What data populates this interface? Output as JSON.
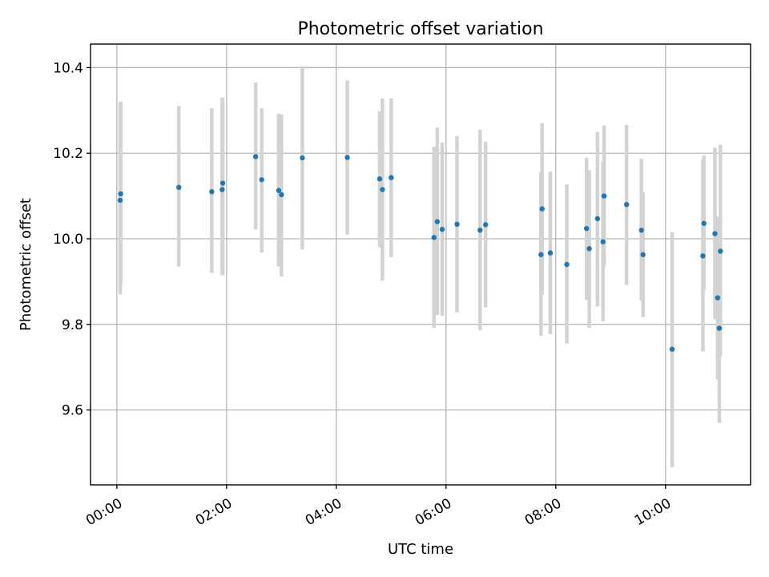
{
  "chart_data": {
    "type": "scatter",
    "title": "Photometric offset variation",
    "xlabel": "UTC time",
    "ylabel": "Photometric offset",
    "x_unit": "hours UTC",
    "xlim": [
      -0.48,
      11.55
    ],
    "ylim": [
      9.425,
      10.455
    ],
    "x_ticks": [
      {
        "value": 0,
        "label": "00:00"
      },
      {
        "value": 2,
        "label": "02:00"
      },
      {
        "value": 4,
        "label": "04:00"
      },
      {
        "value": 6,
        "label": "06:00"
      },
      {
        "value": 8,
        "label": "08:00"
      },
      {
        "value": 10,
        "label": "10:00"
      }
    ],
    "y_ticks": [
      {
        "value": 9.6,
        "label": "9.6"
      },
      {
        "value": 9.8,
        "label": "9.8"
      },
      {
        "value": 10.0,
        "label": "10.0"
      },
      {
        "value": 10.2,
        "label": "10.2"
      },
      {
        "value": 10.4,
        "label": "10.4"
      }
    ],
    "grid": true,
    "marker_color": "#1f77b4",
    "errorbar_color": "#d3d3d3",
    "points": [
      {
        "x": 0.06,
        "y": 10.09,
        "ylo": 9.87,
        "yhi": 10.32
      },
      {
        "x": 0.07,
        "y": 10.105,
        "ylo": 9.89,
        "yhi": 10.32
      },
      {
        "x": 1.13,
        "y": 10.12,
        "ylo": 9.935,
        "yhi": 10.31
      },
      {
        "x": 1.73,
        "y": 10.11,
        "ylo": 9.92,
        "yhi": 10.305
      },
      {
        "x": 1.92,
        "y": 10.115,
        "ylo": 9.915,
        "yhi": 10.33
      },
      {
        "x": 1.93,
        "y": 10.13,
        "ylo": 9.915,
        "yhi": 10.33
      },
      {
        "x": 2.53,
        "y": 10.192,
        "ylo": 10.022,
        "yhi": 10.365
      },
      {
        "x": 2.64,
        "y": 10.138,
        "ylo": 9.968,
        "yhi": 10.305
      },
      {
        "x": 2.95,
        "y": 10.113,
        "ylo": 9.935,
        "yhi": 10.292
      },
      {
        "x": 3.0,
        "y": 10.103,
        "ylo": 9.912,
        "yhi": 10.29
      },
      {
        "x": 3.38,
        "y": 10.189,
        "ylo": 9.975,
        "yhi": 10.403
      },
      {
        "x": 4.2,
        "y": 10.19,
        "ylo": 10.01,
        "yhi": 10.37
      },
      {
        "x": 4.79,
        "y": 10.14,
        "ylo": 9.98,
        "yhi": 10.298
      },
      {
        "x": 4.84,
        "y": 10.115,
        "ylo": 9.902,
        "yhi": 10.328
      },
      {
        "x": 5.0,
        "y": 10.143,
        "ylo": 9.957,
        "yhi": 10.328
      },
      {
        "x": 5.78,
        "y": 10.003,
        "ylo": 9.792,
        "yhi": 10.215
      },
      {
        "x": 5.84,
        "y": 10.04,
        "ylo": 9.822,
        "yhi": 10.26
      },
      {
        "x": 5.93,
        "y": 10.022,
        "ylo": 9.82,
        "yhi": 10.225
      },
      {
        "x": 6.2,
        "y": 10.034,
        "ylo": 9.828,
        "yhi": 10.24
      },
      {
        "x": 6.62,
        "y": 10.02,
        "ylo": 9.787,
        "yhi": 10.255
      },
      {
        "x": 6.72,
        "y": 10.033,
        "ylo": 9.84,
        "yhi": 10.227
      },
      {
        "x": 7.73,
        "y": 9.963,
        "ylo": 9.773,
        "yhi": 10.155
      },
      {
        "x": 7.75,
        "y": 10.07,
        "ylo": 9.87,
        "yhi": 10.27
      },
      {
        "x": 7.9,
        "y": 9.967,
        "ylo": 9.777,
        "yhi": 10.157
      },
      {
        "x": 8.2,
        "y": 9.94,
        "ylo": 9.755,
        "yhi": 10.127
      },
      {
        "x": 8.56,
        "y": 10.024,
        "ylo": 9.857,
        "yhi": 10.189
      },
      {
        "x": 8.61,
        "y": 9.977,
        "ylo": 9.792,
        "yhi": 10.16
      },
      {
        "x": 8.76,
        "y": 10.047,
        "ylo": 9.842,
        "yhi": 10.25
      },
      {
        "x": 8.86,
        "y": 9.993,
        "ylo": 9.807,
        "yhi": 10.18
      },
      {
        "x": 8.88,
        "y": 10.1,
        "ylo": 9.935,
        "yhi": 10.265
      },
      {
        "x": 9.29,
        "y": 10.08,
        "ylo": 9.892,
        "yhi": 10.266
      },
      {
        "x": 9.56,
        "y": 10.02,
        "ylo": 9.856,
        "yhi": 10.187
      },
      {
        "x": 9.59,
        "y": 9.963,
        "ylo": 9.817,
        "yhi": 10.108
      },
      {
        "x": 10.12,
        "y": 9.742,
        "ylo": 9.466,
        "yhi": 10.016
      },
      {
        "x": 10.68,
        "y": 9.96,
        "ylo": 9.737,
        "yhi": 10.185
      },
      {
        "x": 10.7,
        "y": 10.036,
        "ylo": 9.88,
        "yhi": 10.195
      },
      {
        "x": 10.9,
        "y": 10.012,
        "ylo": 9.812,
        "yhi": 10.213
      },
      {
        "x": 10.95,
        "y": 9.862,
        "ylo": 9.672,
        "yhi": 10.052
      },
      {
        "x": 10.98,
        "y": 9.791,
        "ylo": 9.57,
        "yhi": 10.012
      },
      {
        "x": 11.0,
        "y": 9.971,
        "ylo": 9.725,
        "yhi": 10.22
      }
    ]
  }
}
